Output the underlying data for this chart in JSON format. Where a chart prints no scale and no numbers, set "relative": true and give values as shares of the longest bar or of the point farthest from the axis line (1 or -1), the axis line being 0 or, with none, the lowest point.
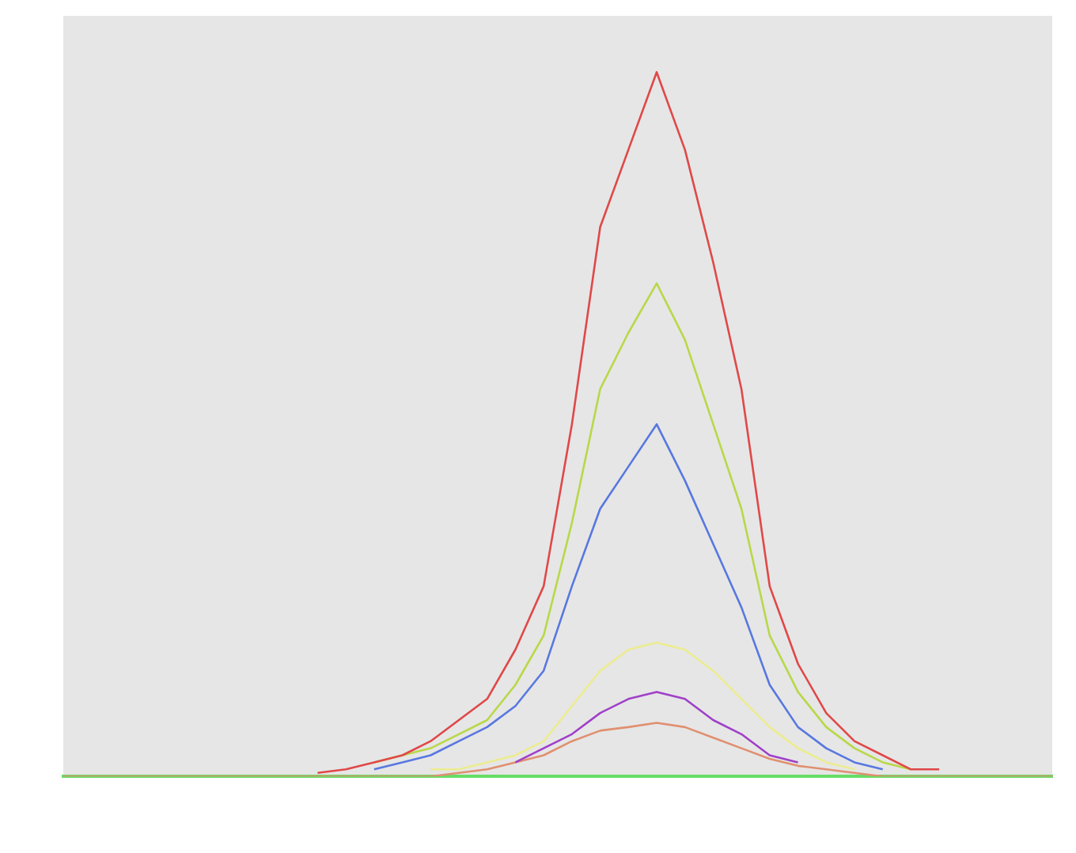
{
  "chart_data": {
    "type": "line",
    "relative": true,
    "marker": "none",
    "line_style": "solid",
    "categories": [
      null,
      null,
      null,
      null,
      null,
      null,
      null,
      null,
      null,
      null,
      null,
      null,
      null,
      null,
      null,
      null,
      null,
      null,
      null,
      null,
      null,
      null,
      null,
      null,
      null,
      null,
      null,
      null,
      null,
      null,
      null,
      null,
      null,
      null,
      null,
      null
    ],
    "series": [
      {
        "color": "#e04848",
        "values": [
          null,
          null,
          null,
          null,
          null,
          null,
          null,
          null,
          null,
          0.005,
          0.01,
          0.02,
          0.03,
          0.05,
          0.08,
          0.11,
          0.18,
          0.27,
          0.5,
          0.78,
          0.89,
          1,
          0.89,
          0.73,
          0.55,
          0.27,
          0.16,
          0.09,
          0.05,
          0.03,
          0.01,
          0.01,
          null,
          null,
          null,
          null
        ]
      },
      {
        "color": "#b8d848",
        "values": [
          null,
          null,
          null,
          null,
          null,
          null,
          null,
          null,
          null,
          null,
          null,
          0.02,
          0.03,
          0.04,
          0.06,
          0.08,
          0.13,
          0.2,
          0.36,
          0.55,
          0.63,
          0.7,
          0.62,
          0.5,
          0.38,
          0.2,
          0.12,
          0.07,
          0.04,
          0.02,
          0.01,
          null,
          null,
          null,
          null,
          null
        ]
      },
      {
        "color": "#5878e0",
        "values": [
          null,
          null,
          null,
          null,
          null,
          null,
          null,
          null,
          null,
          null,
          null,
          0.01,
          0.02,
          0.03,
          0.05,
          0.07,
          0.1,
          0.15,
          0.27,
          0.38,
          0.44,
          0.5,
          0.42,
          0.33,
          0.24,
          0.13,
          0.07,
          0.04,
          0.02,
          0.01,
          null,
          null,
          null,
          null,
          null,
          null
        ]
      },
      {
        "color": "#ecec90",
        "values": [
          null,
          null,
          null,
          null,
          null,
          null,
          null,
          null,
          null,
          null,
          null,
          null,
          null,
          0.01,
          0.01,
          0.02,
          0.03,
          0.05,
          0.1,
          0.15,
          0.18,
          0.19,
          0.18,
          0.15,
          0.11,
          0.07,
          0.04,
          0.02,
          0.01,
          null,
          null,
          null,
          null,
          null,
          null,
          null
        ]
      },
      {
        "color": "#a040c8",
        "values": [
          null,
          null,
          null,
          null,
          null,
          null,
          null,
          null,
          null,
          null,
          null,
          null,
          null,
          null,
          null,
          null,
          0.02,
          0.04,
          0.06,
          0.09,
          0.11,
          0.12,
          0.11,
          0.08,
          0.06,
          0.03,
          0.02,
          null,
          null,
          null,
          null,
          null,
          null,
          null,
          null,
          null
        ]
      },
      {
        "color": "#e09070",
        "values": [
          0,
          0,
          0,
          0,
          0,
          0,
          0,
          0,
          0,
          0,
          0,
          0,
          0,
          0,
          0.005,
          0.01,
          0.02,
          0.03,
          0.05,
          0.065,
          0.07,
          0.076,
          0.07,
          0.055,
          0.04,
          0.025,
          0.015,
          0.01,
          0.005,
          0,
          0,
          0,
          0,
          0,
          0,
          0
        ]
      }
    ]
  }
}
